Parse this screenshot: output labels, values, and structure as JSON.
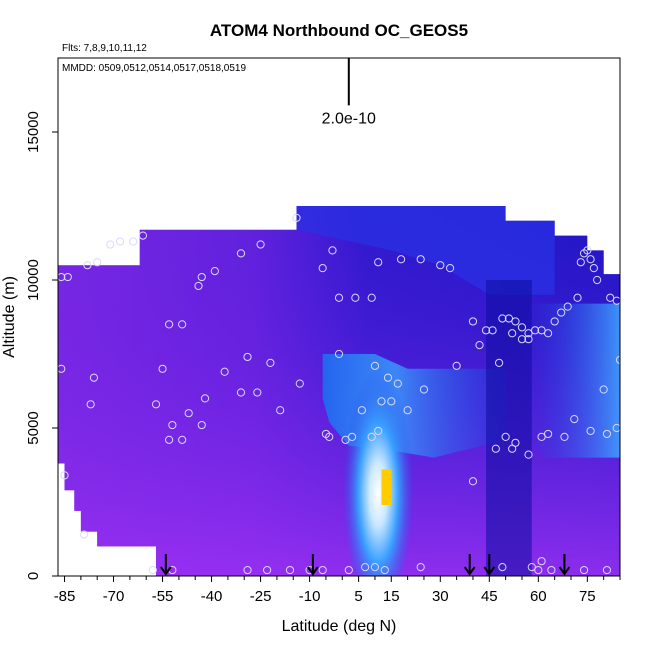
{
  "chart_data": {
    "type": "heatmap",
    "title": "ATOM4 Northbound OC_GEOS5",
    "flights_label": "Flts: 7,8,9,10,11,12",
    "dates_label": "MMDD: 0509,0512,0514,0517,0518,0519",
    "xlabel": "Latitude (deg N)",
    "ylabel": "Altitude (m)",
    "xlim": [
      -87,
      85
    ],
    "ylim": [
      0,
      17500
    ],
    "xticks": [
      -85,
      -70,
      -55,
      -40,
      -25,
      -10,
      5,
      15,
      30,
      45,
      60,
      75
    ],
    "xtick_labels": [
      "-85",
      "-70",
      "-55",
      "-40",
      "-25",
      "-10",
      "5",
      "15",
      "30",
      "45",
      "60",
      "75"
    ],
    "yticks": [
      0,
      5000,
      10000,
      15000
    ],
    "ytick_labels": [
      "0",
      "5000",
      "10000",
      "15000"
    ],
    "scale_bar_label": "2.0e-10",
    "scale_bar_x": 2,
    "scale_bar_y": [
      15900,
      17500
    ],
    "colors": {
      "low": "#9a2cf0",
      "mid": "#1a18c8",
      "high": "#ffffff",
      "peak": "#ffcc00",
      "marker": "#d9d9ff",
      "arrow": "#000000"
    },
    "arrows_x": [
      -54,
      -9,
      39,
      45,
      68
    ],
    "obs_points": [
      [
        -86,
        10100
      ],
      [
        -84,
        10100
      ],
      [
        -78,
        10500
      ],
      [
        -75,
        10600
      ],
      [
        -71,
        11200
      ],
      [
        -68,
        11300
      ],
      [
        -64,
        11300
      ],
      [
        -61,
        11500
      ],
      [
        -44,
        9800
      ],
      [
        -43,
        10100
      ],
      [
        -39,
        10300
      ],
      [
        -31,
        10900
      ],
      [
        -25,
        11200
      ],
      [
        -14,
        12100
      ],
      [
        -6,
        10400
      ],
      [
        -3,
        11000
      ],
      [
        -1,
        9400
      ],
      [
        4,
        9400
      ],
      [
        9,
        9400
      ],
      [
        11,
        10600
      ],
      [
        18,
        10700
      ],
      [
        24,
        10700
      ],
      [
        30,
        10500
      ],
      [
        33,
        10400
      ],
      [
        -53,
        8500
      ],
      [
        -49,
        8500
      ],
      [
        -29,
        7400
      ],
      [
        -22,
        7200
      ],
      [
        -1,
        7500
      ],
      [
        -13,
        6500
      ],
      [
        -26,
        6200
      ],
      [
        -31,
        6200
      ],
      [
        -36,
        6900
      ],
      [
        -42,
        6000
      ],
      [
        -47,
        5500
      ],
      [
        -52,
        5100
      ],
      [
        -53,
        4600
      ],
      [
        -49,
        4600
      ],
      [
        -43,
        5100
      ],
      [
        -19,
        5600
      ],
      [
        -57,
        5800
      ],
      [
        -55,
        7000
      ],
      [
        -77,
        5800
      ],
      [
        -76,
        6700
      ],
      [
        -86,
        7000
      ],
      [
        -85,
        3400
      ],
      [
        -79,
        1400
      ],
      [
        10,
        7100
      ],
      [
        12,
        5900
      ],
      [
        14,
        6700
      ],
      [
        15,
        5900
      ],
      [
        17,
        6500
      ],
      [
        20,
        5600
      ],
      [
        25,
        6300
      ],
      [
        35,
        7100
      ],
      [
        40,
        8600
      ],
      [
        42,
        7800
      ],
      [
        44,
        8300
      ],
      [
        46,
        8300
      ],
      [
        49,
        8700
      ],
      [
        51,
        8700
      ],
      [
        53,
        8600
      ],
      [
        55,
        8400
      ],
      [
        57,
        8200
      ],
      [
        59,
        8300
      ],
      [
        61,
        8300
      ],
      [
        63,
        8200
      ],
      [
        65,
        8600
      ],
      [
        67,
        8900
      ],
      [
        69,
        9100
      ],
      [
        72,
        9400
      ],
      [
        73,
        10600
      ],
      [
        74,
        10900
      ],
      [
        75,
        11000
      ],
      [
        76,
        10700
      ],
      [
        77,
        10400
      ],
      [
        78,
        10000
      ],
      [
        82,
        9400
      ],
      [
        84,
        9300
      ],
      [
        48,
        7200
      ],
      [
        52,
        8200
      ],
      [
        55,
        8000
      ],
      [
        57,
        8000
      ],
      [
        40,
        3200
      ],
      [
        47,
        4300
      ],
      [
        50,
        4700
      ],
      [
        52,
        4300
      ],
      [
        53,
        4500
      ],
      [
        57,
        4100
      ],
      [
        61,
        4700
      ],
      [
        63,
        4800
      ],
      [
        68,
        4700
      ],
      [
        71,
        5300
      ],
      [
        76,
        4900
      ],
      [
        80,
        6300
      ],
      [
        81,
        4800
      ],
      [
        84,
        5000
      ],
      [
        85,
        7300
      ],
      [
        3,
        4700
      ],
      [
        6,
        5600
      ],
      [
        9,
        4700
      ],
      [
        11,
        4900
      ],
      [
        -5,
        4800
      ],
      [
        -4,
        4700
      ],
      [
        1,
        4600
      ],
      [
        -58,
        200
      ],
      [
        -52,
        200
      ],
      [
        -29,
        200
      ],
      [
        -23,
        200
      ],
      [
        -16,
        200
      ],
      [
        -10,
        200
      ],
      [
        -6,
        200
      ],
      [
        2,
        200
      ],
      [
        7,
        300
      ],
      [
        10,
        300
      ],
      [
        13,
        200
      ],
      [
        24,
        300
      ],
      [
        49,
        300
      ],
      [
        58,
        300
      ],
      [
        60,
        200
      ],
      [
        61,
        500
      ],
      [
        64,
        200
      ],
      [
        74,
        200
      ],
      [
        81,
        200
      ]
    ]
  }
}
